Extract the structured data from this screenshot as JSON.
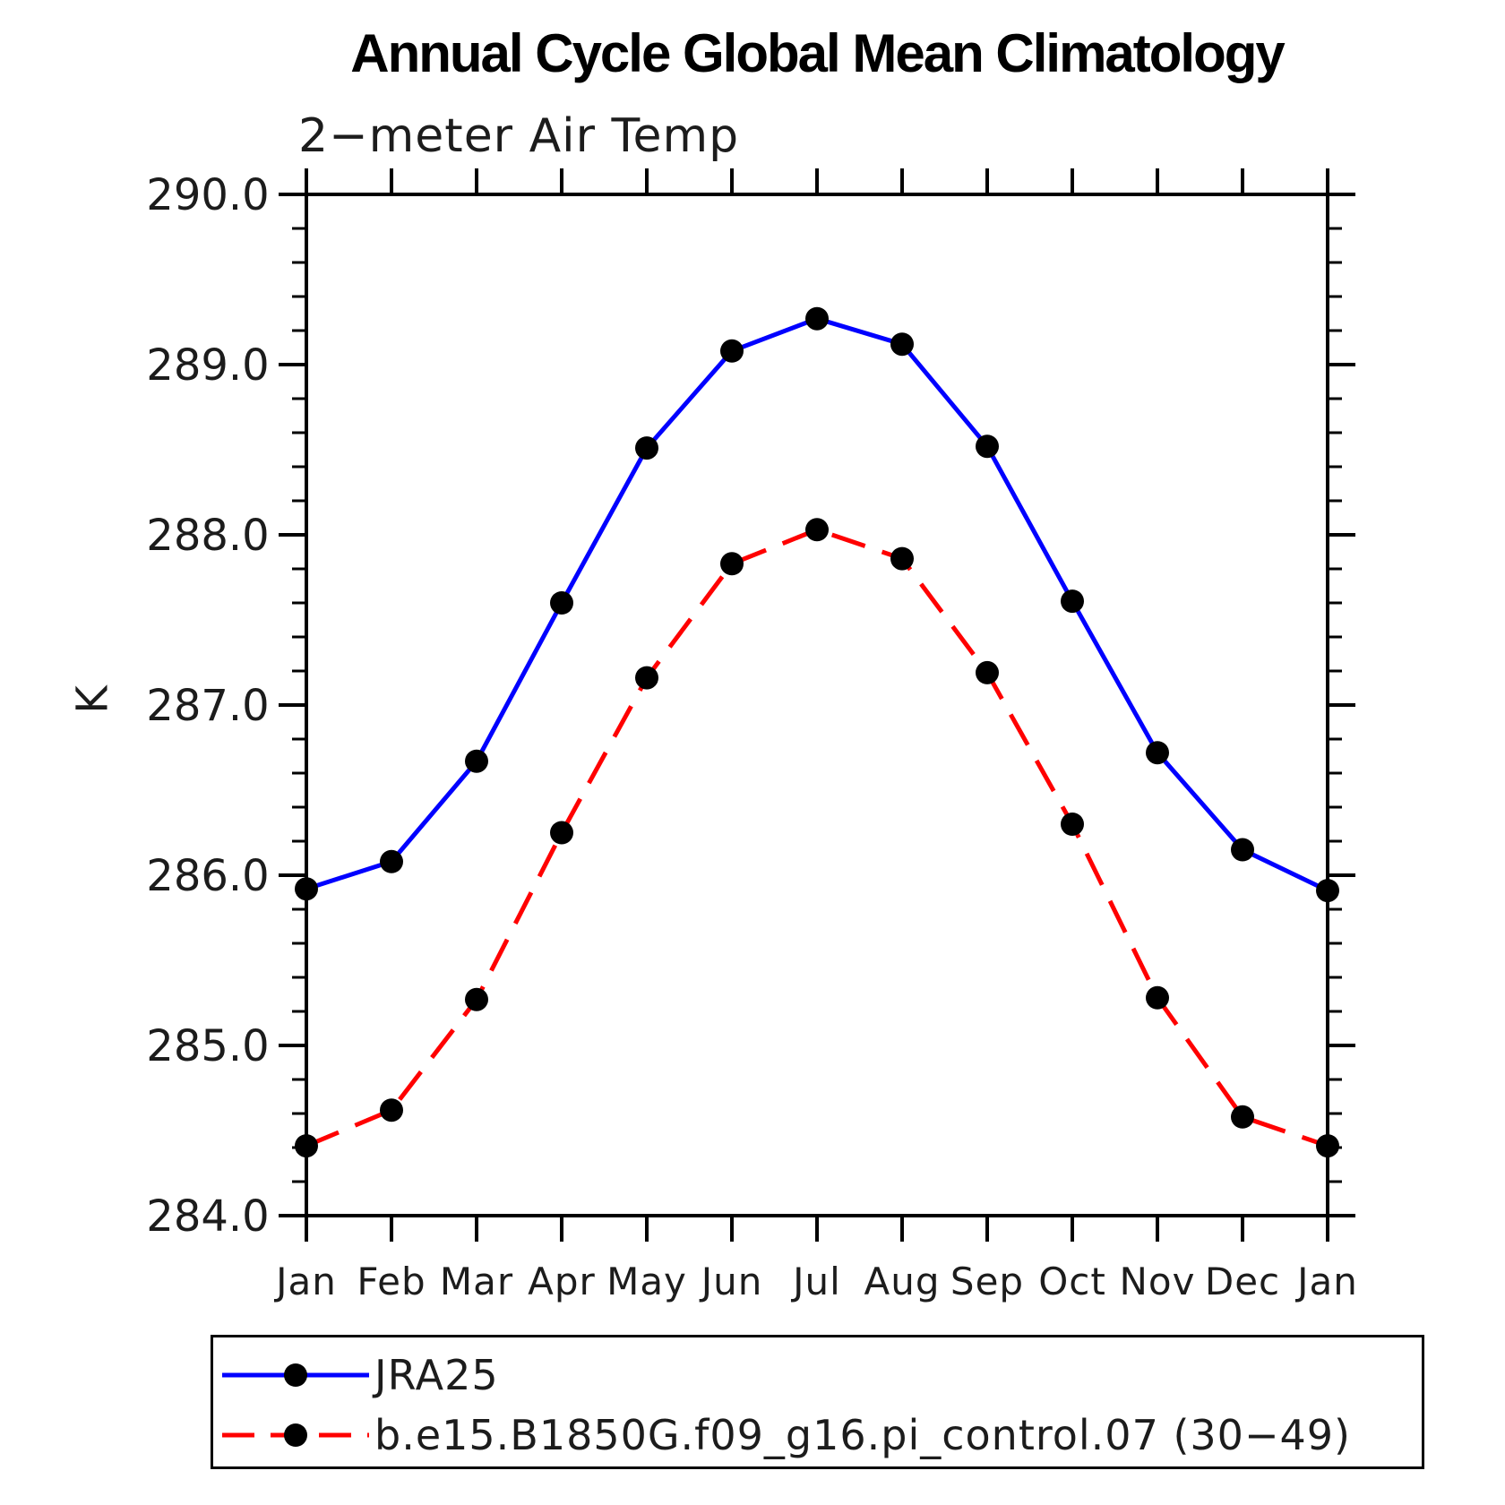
{
  "page": {
    "background_color": "#ffffff"
  },
  "chart_data": {
    "type": "line",
    "title": "Annual Cycle Global Mean Climatology",
    "subtitle": "2−meter Air Temp",
    "ylabel": "K",
    "x_categories": [
      "Jan",
      "Feb",
      "Mar",
      "Apr",
      "May",
      "Jun",
      "Jul",
      "Aug",
      "Sep",
      "Oct",
      "Nov",
      "Dec",
      "Jan"
    ],
    "ylim": [
      284.0,
      290.0
    ],
    "ytick_interval_major": 1.0,
    "ytick_interval_minor": 0.2,
    "ytick_labels": [
      "290.0",
      "289.0",
      "288.0",
      "287.0",
      "286.0",
      "285.0",
      "284.0"
    ],
    "grid": false,
    "axis_color": "#000000",
    "legend_position": "bottom-left",
    "series": [
      {
        "name": "JRA25",
        "color": "#0000ff",
        "line_style": "solid",
        "marker": "filled-circle",
        "marker_color": "#000000",
        "values": [
          285.92,
          286.08,
          286.67,
          287.6,
          288.51,
          289.08,
          289.27,
          289.12,
          288.52,
          287.61,
          286.72,
          286.15,
          285.91
        ]
      },
      {
        "name": "b.e15.B1850G.f09_g16.pi_control.07 (30−49)",
        "color": "#ff0000",
        "line_style": "dashed",
        "marker": "filled-circle",
        "marker_color": "#000000",
        "values": [
          284.41,
          284.62,
          285.27,
          286.25,
          287.16,
          287.83,
          288.03,
          287.86,
          287.19,
          286.3,
          285.28,
          284.58,
          284.41
        ]
      }
    ]
  }
}
